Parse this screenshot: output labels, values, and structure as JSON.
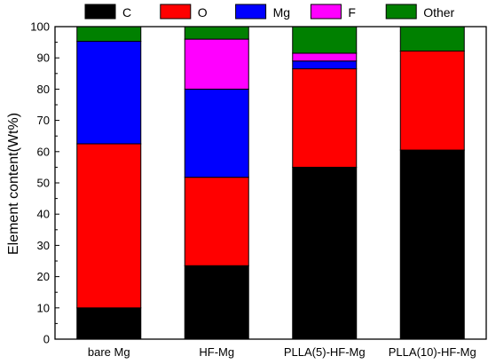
{
  "chart_data": {
    "type": "bar",
    "stacked": true,
    "categories": [
      "bare Mg",
      "HF-Mg",
      "PLLA(5)-HF-Mg",
      "PLLA(10)-HF-Mg"
    ],
    "series": [
      {
        "name": "C",
        "color": "#000000",
        "values": [
          10,
          23.5,
          55,
          60.5
        ]
      },
      {
        "name": "O",
        "color": "#ff0000",
        "values": [
          52.5,
          28.3,
          31.5,
          31.7
        ]
      },
      {
        "name": "Mg",
        "color": "#0000ff",
        "values": [
          32.8,
          28.2,
          2.5,
          0
        ]
      },
      {
        "name": "F",
        "color": "#ff00ff",
        "values": [
          0,
          16,
          2.5,
          0
        ]
      },
      {
        "name": "Other",
        "color": "#008000",
        "values": [
          4.7,
          4,
          8.5,
          7.8
        ]
      }
    ],
    "xlabel": "",
    "ylabel": "Element content(Wt%)",
    "ylim": [
      0,
      100
    ],
    "yticks": [
      0,
      10,
      20,
      30,
      40,
      50,
      60,
      70,
      80,
      90,
      100
    ],
    "grid": false,
    "legend": "top, horizontal"
  }
}
